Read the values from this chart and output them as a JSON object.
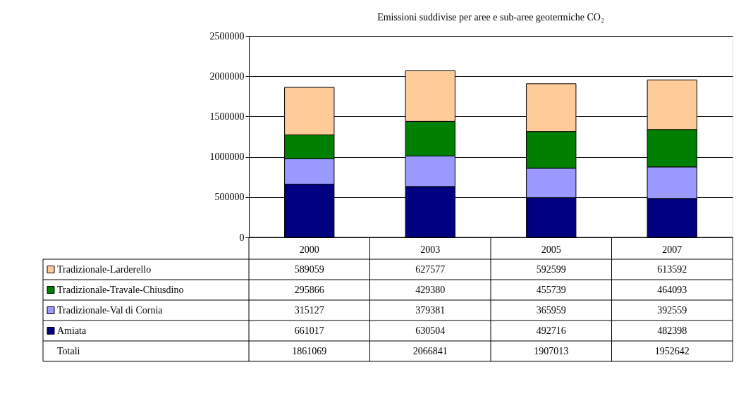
{
  "chart_data": {
    "type": "bar",
    "title": "Emissioni suddivise per aree e sub-aree geotermiche CO₂",
    "categories": [
      "2000",
      "2003",
      "2005",
      "2007"
    ],
    "stacked": true,
    "series": [
      {
        "name": "Amiata",
        "color": "#000080",
        "values": [
          661017,
          630504,
          492716,
          482398
        ]
      },
      {
        "name": "Tradizionale-Val di Cornia",
        "color": "#9999ff",
        "values": [
          315127,
          379381,
          365959,
          392559
        ]
      },
      {
        "name": "Tradizionale-Travale-Chiusdino",
        "color": "#008000",
        "values": [
          295866,
          429380,
          455739,
          464093
        ]
      },
      {
        "name": "Tradizionale-Larderello",
        "color": "#ffcc99",
        "values": [
          589059,
          627577,
          592599,
          613592
        ]
      }
    ],
    "annotations": [
      "Totali",
      "1861069",
      "2066841",
      "1907013",
      "1952642"
    ],
    "ylim": [
      0,
      2500000
    ],
    "yticks": [
      0,
      500000,
      1000000,
      1500000,
      2000000,
      2500000
    ],
    "grid": "y",
    "legend": "bottom",
    "data_labels": true
  }
}
